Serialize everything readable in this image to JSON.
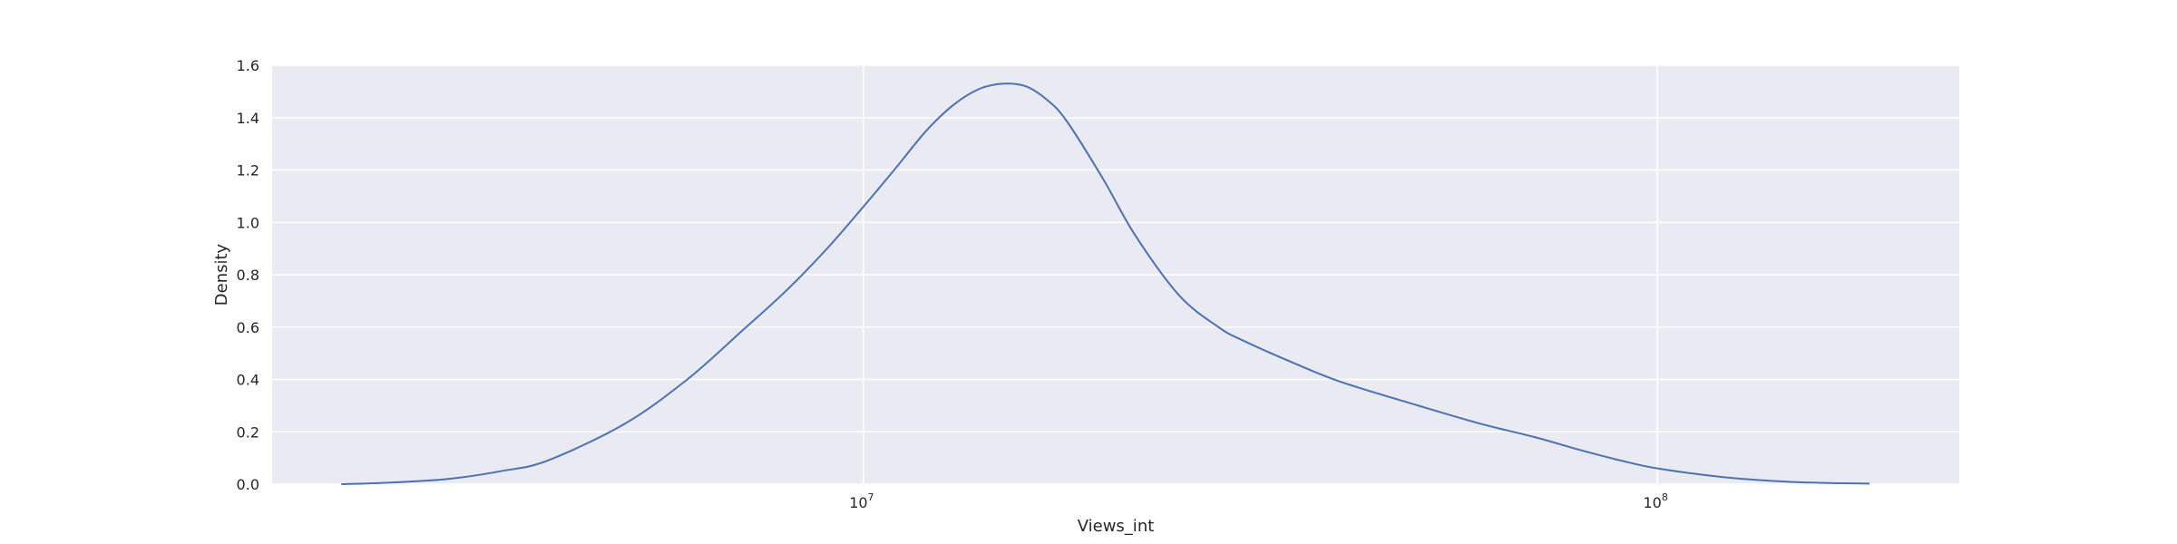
{
  "chart_data": {
    "type": "line",
    "title": "",
    "xlabel": "Views_int",
    "ylabel": "Density",
    "x_scale": "log",
    "xlim": [
      1800000,
      240000000
    ],
    "ylim": [
      0,
      1.6
    ],
    "x_ticks": [
      {
        "value": 10000000,
        "base": "10",
        "exp": "7"
      },
      {
        "value": 100000000,
        "base": "10",
        "exp": "8"
      }
    ],
    "y_ticks": [
      {
        "value": 0.0,
        "label": "0.0"
      },
      {
        "value": 0.2,
        "label": "0.2"
      },
      {
        "value": 0.4,
        "label": "0.4"
      },
      {
        "value": 0.6,
        "label": "0.6"
      },
      {
        "value": 0.8,
        "label": "0.8"
      },
      {
        "value": 1.0,
        "label": "1.0"
      },
      {
        "value": 1.2,
        "label": "1.2"
      },
      {
        "value": 1.4,
        "label": "1.4"
      },
      {
        "value": 1.6,
        "label": "1.6"
      }
    ],
    "grid": true,
    "background_color": "#EAEAF2",
    "grid_color": "#FFFFFF",
    "series": [
      {
        "color": "#4C72B0",
        "x": [
          2200000,
          2500000,
          3000000,
          3500000,
          4000000,
          5000000,
          6000000,
          7000000,
          8000000,
          9000000,
          10000000,
          11000000,
          12000000,
          13000000,
          14000000,
          15000000,
          16000000,
          17000000,
          18000000,
          20000000,
          22000000,
          25000000,
          28000000,
          30000000,
          35000000,
          40000000,
          50000000,
          60000000,
          70000000,
          80000000,
          90000000,
          100000000,
          120000000,
          140000000,
          160000000,
          185000000
        ],
        "y": [
          0.0,
          0.005,
          0.02,
          0.05,
          0.09,
          0.23,
          0.4,
          0.58,
          0.74,
          0.9,
          1.06,
          1.21,
          1.35,
          1.45,
          1.51,
          1.53,
          1.52,
          1.47,
          1.39,
          1.17,
          0.95,
          0.72,
          0.6,
          0.55,
          0.46,
          0.39,
          0.3,
          0.23,
          0.18,
          0.13,
          0.09,
          0.06,
          0.028,
          0.012,
          0.005,
          0.002
        ]
      }
    ]
  }
}
